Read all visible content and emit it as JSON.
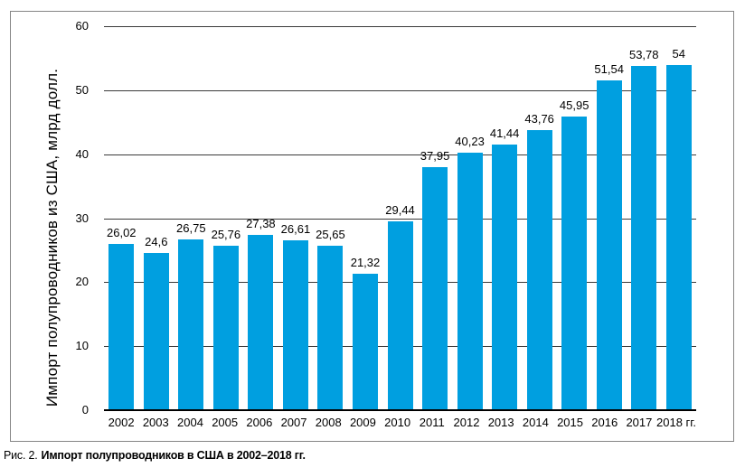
{
  "figure": {
    "caption_prefix": "Рис. 2.",
    "caption_text": "Импорт полупроводников в США в 2002–2018 гг."
  },
  "chart_data": {
    "type": "bar",
    "title": "",
    "xlabel": "",
    "ylabel": "Импорт полупроводников из США, млрд долл.",
    "categories": [
      "2002",
      "2003",
      "2004",
      "2005",
      "2006",
      "2007",
      "2008",
      "2009",
      "2010",
      "2011",
      "2012",
      "2013",
      "2014",
      "2015",
      "2016",
      "2017",
      "2018 гг."
    ],
    "values": [
      26.02,
      24.6,
      26.75,
      25.76,
      27.38,
      26.61,
      25.65,
      21.32,
      29.44,
      37.95,
      40.23,
      41.44,
      43.76,
      45.95,
      51.54,
      53.78,
      54
    ],
    "value_labels": [
      "26,02",
      "24,6",
      "26,75",
      "25,76",
      "27,38",
      "26,61",
      "25,65",
      "21,32",
      "29,44",
      "37,95",
      "40,23",
      "41,44",
      "43,76",
      "45,95",
      "51,54",
      "53,78",
      "54"
    ],
    "y_ticks": [
      60,
      50,
      40,
      30,
      20,
      10,
      0
    ],
    "ylim": [
      0,
      60
    ],
    "grid": true,
    "legend_position": "none",
    "bar_color": "#009FE0",
    "gridline_color": "#3a3a3a",
    "axis_color": "#000000",
    "frame_color": "#858585"
  }
}
